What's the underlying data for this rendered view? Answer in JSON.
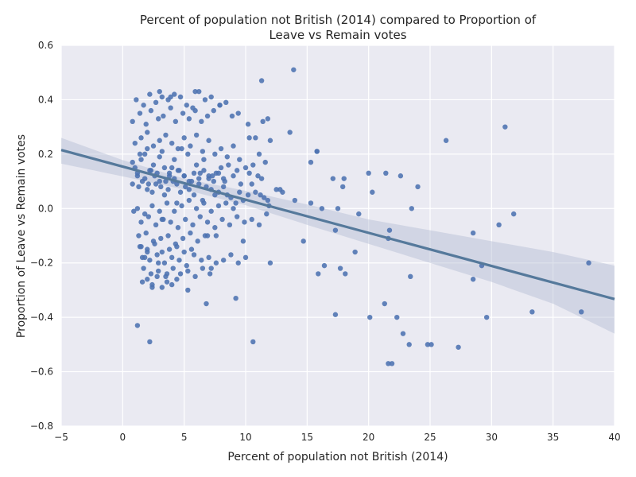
{
  "chart_data": {
    "type": "scatter",
    "title_lines": [
      "Percent of population not British (2014) compared to Proportion of",
      "Leave vs Remain votes"
    ],
    "xlabel": "Percent of population not British (2014)",
    "ylabel": "Proportion of Leave vs Remain votes",
    "xlim": [
      -5,
      40
    ],
    "ylim": [
      -0.8,
      0.6
    ],
    "xticks": [
      -5,
      0,
      5,
      10,
      15,
      20,
      25,
      30,
      35,
      40
    ],
    "xtick_labels": [
      "−5",
      "0",
      "5",
      "10",
      "15",
      "20",
      "25",
      "30",
      "35",
      "40"
    ],
    "yticks": [
      -0.8,
      -0.6,
      -0.4,
      -0.2,
      0.0,
      0.2,
      0.4,
      0.6
    ],
    "ytick_labels": [
      "−0.8",
      "−0.6",
      "−0.4",
      "−0.2",
      "0.0",
      "0.2",
      "0.4",
      "0.6"
    ],
    "grid": true,
    "style": "seaborn-darkgrid",
    "background_color": "#EAEAF2",
    "grid_color": "#FFFFFF",
    "point_color": "#4C72B0",
    "line_color": "#55799B",
    "ci_color": "#B4BDD3",
    "regression": {
      "x": [
        -5,
        40
      ],
      "y": [
        0.215,
        -0.333
      ]
    },
    "confidence_band": {
      "x": [
        -5,
        0,
        5,
        10,
        15,
        20,
        25,
        30,
        35,
        40
      ],
      "upper": [
        0.26,
        0.178,
        0.11,
        0.065,
        0.015,
        -0.04,
        -0.08,
        -0.12,
        -0.16,
        -0.21
      ],
      "lower": [
        0.165,
        0.118,
        0.07,
        0.012,
        -0.06,
        -0.13,
        -0.2,
        -0.27,
        -0.35,
        -0.46
      ]
    },
    "x": [
      0.8,
      1.0,
      1.2,
      1.5,
      1.8,
      2.0,
      2.2,
      2.5,
      2.8,
      3.0,
      3.2,
      3.5,
      3.8,
      4.0,
      4.2,
      4.5,
      4.8,
      5.0,
      5.3,
      5.6,
      6.0,
      6.3,
      6.6,
      7.0,
      7.3,
      7.6,
      8.0,
      8.3,
      8.6,
      9.0,
      9.3,
      9.6,
      10.0,
      10.3,
      10.6,
      11.0,
      11.3,
      11.6,
      12.0,
      0.8,
      1.3,
      1.6,
      2.0,
      2.4,
      2.7,
      3.1,
      3.4,
      3.7,
      4.1,
      4.4,
      4.7,
      5.1,
      5.4,
      5.8,
      6.2,
      6.5,
      6.8,
      7.2,
      7.5,
      7.8,
      8.2,
      8.5,
      8.8,
      9.2,
      9.5,
      9.8,
      10.2,
      10.5,
      10.8,
      11.2,
      11.5,
      11.8,
      1.0,
      1.5,
      2.0,
      2.5,
      3.0,
      3.5,
      4.0,
      4.5,
      5.0,
      5.5,
      6.0,
      6.5,
      7.0,
      7.5,
      8.0,
      8.5,
      9.0,
      9.5,
      0.8,
      1.4,
      1.9,
      2.3,
      2.9,
      3.3,
      3.9,
      4.3,
      4.9,
      5.4,
      5.9,
      6.4,
      6.9,
      7.4,
      7.9,
      8.4,
      8.9,
      9.4,
      10.2,
      10.8,
      11.4,
      1.1,
      1.7,
      2.2,
      2.7,
      3.2,
      3.7,
      4.2,
      4.7,
      5.2,
      5.7,
      6.2,
      6.7,
      7.2,
      1.2,
      1.8,
      2.4,
      3.0,
      3.6,
      4.2,
      4.8,
      5.4,
      6.0,
      6.6,
      7.2,
      7.8,
      8.4,
      9.0,
      1.5,
      2.1,
      2.7,
      3.3,
      3.9,
      4.5,
      5.1,
      5.7,
      6.3,
      6.9,
      7.5,
      8.1,
      8.7,
      9.3,
      9.9,
      10.5,
      11.1,
      11.7,
      1.3,
      1.9,
      2.5,
      3.1,
      3.7,
      4.3,
      4.9,
      5.5,
      6.1,
      6.7,
      1.4,
      2.0,
      2.6,
      3.2,
      3.8,
      4.4,
      5.0,
      5.6,
      1.6,
      2.2,
      2.8,
      3.4,
      4.0,
      4.6,
      5.2,
      5.8,
      6.4,
      7.0,
      7.6,
      8.2,
      8.8,
      9.4,
      10.0,
      1.7,
      2.3,
      2.9,
      3.5,
      4.1,
      4.7,
      5.3,
      5.9,
      6.5,
      7.1,
      1.2,
      1.8,
      2.1,
      2.3,
      2.6,
      3.0,
      3.4,
      3.8,
      4.2,
      4.6,
      5.0,
      5.4,
      5.8,
      6.2,
      6.6,
      7.0,
      7.4,
      7.8,
      8.2,
      1.6,
      2.0,
      2.4,
      2.8,
      3.2,
      3.6,
      4.0,
      4.4,
      13.9,
      11.3,
      11.8,
      10.3,
      13.6,
      15.8,
      11.1,
      12.8,
      13.0,
      14.0,
      15.3,
      17.1,
      17.9,
      15.8,
      18.0,
      17.5,
      19.2,
      20.0,
      20.3,
      21.4,
      22.6,
      23.5,
      26.3,
      31.1,
      28.5,
      30.6,
      31.8,
      24.0,
      14.7,
      15.3,
      17.3,
      21.3,
      21.6,
      21.9,
      22.3,
      22.8,
      23.3,
      24.8,
      25.1,
      27.3,
      20.1,
      17.3,
      18.1,
      18.9,
      16.4,
      15.9,
      17.7,
      21.6,
      21.7,
      23.4,
      29.6,
      33.3,
      37.3,
      37.9,
      29.2,
      28.5,
      16.2,
      12.5,
      12.0,
      11.9,
      1.2,
      2.2,
      1.8,
      6.8,
      10.6,
      9.2,
      5.3,
      3.6,
      2.4,
      1.5,
      2.9,
      2.0,
      3.2,
      6.9,
      7.2,
      7.6,
      9.8,
      3.9,
      3.0,
      4.4,
      5.9,
      7.9,
      1.4,
      0.9
    ],
    "y": [
      0.17,
      0.15,
      0.12,
      0.18,
      0.2,
      0.22,
      0.14,
      0.16,
      0.13,
      0.19,
      0.21,
      0.1,
      0.12,
      0.15,
      0.18,
      0.14,
      0.22,
      0.12,
      0.2,
      0.1,
      0.16,
      0.13,
      0.18,
      0.11,
      0.12,
      0.13,
      0.15,
      0.1,
      0.16,
      0.12,
      0.14,
      0.09,
      0.15,
      0.13,
      0.16,
      0.12,
      0.11,
      0.17,
      0.25,
      0.09,
      0.08,
      0.1,
      0.07,
      0.06,
      0.09,
      0.08,
      0.05,
      0.07,
      0.1,
      0.09,
      0.06,
      0.08,
      0.07,
      0.05,
      0.09,
      0.03,
      0.08,
      0.07,
      0.05,
      0.06,
      0.08,
      0.05,
      0.04,
      0.02,
      0.06,
      0.03,
      0.05,
      0.09,
      0.06,
      0.05,
      0.04,
      0.03,
      0.24,
      0.26,
      0.28,
      0.23,
      0.25,
      0.27,
      0.24,
      0.22,
      0.26,
      0.23,
      0.27,
      0.21,
      0.25,
      0.2,
      0.22,
      0.19,
      0.23,
      0.18,
      0.32,
      0.35,
      0.31,
      0.36,
      0.33,
      0.34,
      0.37,
      0.32,
      0.35,
      0.33,
      0.36,
      0.32,
      0.34,
      0.36,
      0.38,
      0.39,
      0.34,
      0.35,
      0.31,
      0.26,
      0.32,
      0.4,
      0.38,
      0.42,
      0.39,
      0.41,
      0.4,
      0.42,
      0.41,
      0.38,
      0.37,
      0.43,
      0.4,
      0.41,
      0.0,
      -0.02,
      0.01,
      -0.01,
      0.02,
      -0.01,
      0.01,
      0.03,
      0.0,
      0.02,
      -0.01,
      0.01,
      0.02,
      0.0,
      -0.05,
      -0.03,
      -0.06,
      -0.04,
      -0.05,
      -0.07,
      -0.04,
      -0.06,
      -0.03,
      -0.05,
      -0.07,
      -0.04,
      -0.06,
      -0.03,
      -0.05,
      -0.04,
      -0.06,
      -0.02,
      -0.1,
      -0.09,
      -0.12,
      -0.11,
      -0.1,
      -0.13,
      -0.11,
      -0.09,
      -0.12,
      -0.1,
      -0.14,
      -0.15,
      -0.13,
      -0.16,
      -0.15,
      -0.14,
      -0.16,
      -0.15,
      -0.18,
      -0.19,
      -0.17,
      -0.2,
      -0.18,
      -0.19,
      -0.21,
      -0.17,
      -0.19,
      -0.18,
      -0.2,
      -0.19,
      -0.17,
      -0.2,
      -0.18,
      -0.22,
      -0.24,
      -0.23,
      -0.25,
      -0.22,
      -0.24,
      -0.23,
      -0.25,
      -0.22,
      -0.24,
      0.13,
      0.11,
      0.09,
      0.14,
      0.12,
      0.1,
      0.15,
      0.13,
      0.11,
      0.14,
      0.12,
      0.1,
      0.13,
      0.11,
      0.14,
      0.12,
      0.1,
      0.13,
      0.11,
      -0.27,
      -0.26,
      -0.28,
      -0.25,
      -0.29,
      -0.27,
      -0.28,
      -0.26,
      0.51,
      0.47,
      0.33,
      0.26,
      0.28,
      0.21,
      0.2,
      0.07,
      0.06,
      0.03,
      0.17,
      0.11,
      0.08,
      0.21,
      0.11,
      0.0,
      -0.02,
      0.13,
      0.06,
      0.13,
      0.12,
      0.0,
      0.25,
      0.3,
      -0.09,
      -0.06,
      -0.02,
      0.08,
      -0.12,
      0.02,
      -0.08,
      -0.35,
      -0.57,
      -0.57,
      -0.4,
      -0.46,
      -0.5,
      -0.5,
      -0.5,
      -0.51,
      -0.4,
      -0.39,
      -0.24,
      -0.16,
      -0.21,
      -0.24,
      -0.22,
      -0.11,
      -0.08,
      -0.25,
      -0.4,
      -0.38,
      -0.38,
      -0.2,
      -0.21,
      -0.26,
      0.0,
      0.07,
      -0.2,
      0.01,
      -0.43,
      -0.49,
      -0.18,
      -0.35,
      -0.49,
      -0.33,
      -0.3,
      -0.24,
      -0.29,
      -0.14,
      -0.2,
      -0.16,
      -0.04,
      -0.1,
      -0.22,
      -0.1,
      -0.12,
      0.41,
      0.43,
      0.02,
      0.43,
      0.38,
      0.2,
      -0.01
    ]
  }
}
